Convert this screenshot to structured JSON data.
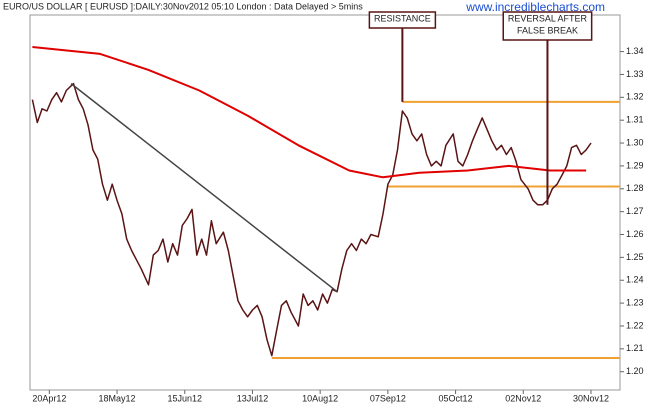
{
  "chart_data": {
    "type": "line",
    "title": "EURO/US DOLLAR [ EURUSD ]:DAILY:30Nov2012 05:10 London : Data Delayed > 5mins",
    "watermark": "www.incrediblecharts.com",
    "xlim": [
      -1,
      243
    ],
    "xticks": [
      {
        "value": 7,
        "label": "20Apr12"
      },
      {
        "value": 35,
        "label": "18May12"
      },
      {
        "value": 63,
        "label": "15Jun12"
      },
      {
        "value": 91,
        "label": "13Jul12"
      },
      {
        "value": 119,
        "label": "10Aug12"
      },
      {
        "value": 147,
        "label": "07Sep12"
      },
      {
        "value": 175,
        "label": "05Oct12"
      },
      {
        "value": 203,
        "label": "02Nov12"
      },
      {
        "value": 231,
        "label": "30Nov12"
      }
    ],
    "ylim": [
      1.192,
      1.356
    ],
    "yticks": [
      {
        "value": 1.2,
        "label": "1.20"
      },
      1.21,
      1.22,
      1.23,
      1.24,
      1.25,
      1.26,
      1.27,
      1.28,
      1.29,
      {
        "value": 1.3,
        "label": "1.30"
      },
      1.31,
      1.32,
      1.33,
      1.34
    ],
    "series": [
      {
        "color": "#5a1414",
        "x": [
          0,
          2,
          4,
          6,
          8,
          10,
          12,
          14,
          17,
          19,
          21,
          23,
          25,
          27,
          29,
          31,
          33,
          35,
          37,
          39,
          41,
          43,
          45,
          48,
          50,
          52,
          54,
          56,
          58,
          60,
          62,
          64,
          66,
          68,
          70,
          72,
          74,
          76,
          79,
          81,
          83,
          85,
          87,
          89,
          91,
          93,
          95,
          97,
          99,
          101,
          103,
          105,
          107,
          110,
          112,
          114,
          116,
          118,
          120,
          122,
          124,
          126,
          128,
          130,
          132,
          134,
          136,
          138,
          140,
          143,
          145,
          147,
          149,
          151,
          153,
          155,
          157,
          159,
          161,
          163,
          165,
          167,
          169,
          171,
          174,
          176,
          178,
          180,
          182,
          184,
          186,
          188,
          190,
          192,
          194,
          196,
          198,
          200,
          202,
          205,
          207,
          209,
          211,
          213,
          215,
          217,
          219,
          221,
          223,
          225,
          227,
          229,
          231
        ],
        "values": [
          1.319,
          1.309,
          1.315,
          1.314,
          1.319,
          1.322,
          1.318,
          1.323,
          1.326,
          1.319,
          1.315,
          1.308,
          1.297,
          1.293,
          1.282,
          1.275,
          1.282,
          1.275,
          1.269,
          1.258,
          1.253,
          1.249,
          1.245,
          1.238,
          1.251,
          1.253,
          1.258,
          1.248,
          1.256,
          1.251,
          1.264,
          1.267,
          1.271,
          1.251,
          1.258,
          1.251,
          1.266,
          1.256,
          1.261,
          1.253,
          1.242,
          1.231,
          1.227,
          1.224,
          1.227,
          1.229,
          1.224,
          1.214,
          1.207,
          1.218,
          1.229,
          1.231,
          1.226,
          1.22,
          1.234,
          1.229,
          1.231,
          1.227,
          1.234,
          1.23,
          1.236,
          1.235,
          1.245,
          1.253,
          1.256,
          1.253,
          1.258,
          1.256,
          1.26,
          1.259,
          1.269,
          1.282,
          1.286,
          1.297,
          1.314,
          1.311,
          1.304,
          1.301,
          1.304,
          1.295,
          1.29,
          1.292,
          1.29,
          1.299,
          1.304,
          1.292,
          1.29,
          1.295,
          1.301,
          1.306,
          1.311,
          1.306,
          1.301,
          1.297,
          1.299,
          1.295,
          1.298,
          1.292,
          1.284,
          1.28,
          1.275,
          1.273,
          1.273,
          1.275,
          1.28,
          1.282,
          1.286,
          1.29,
          1.298,
          1.299,
          1.295,
          1.297,
          1.3
        ]
      },
      {
        "color": "#e00000",
        "x": [
          0,
          28,
          48,
          69,
          89,
          110,
          131,
          145,
          160,
          180,
          197,
          214,
          229
        ],
        "values": [
          1.342,
          1.339,
          1.332,
          1.323,
          1.312,
          1.299,
          1.288,
          1.285,
          1.287,
          1.288,
          1.29,
          1.288,
          1.288
        ]
      },
      {
        "color": "#444444",
        "x": [
          16,
          126
        ],
        "values": [
          1.326,
          1.235
        ]
      }
    ],
    "hlines": [
      {
        "value": 1.318,
        "x_start": 153,
        "color": "#f0a030"
      },
      {
        "value": 1.281,
        "x_start": 147,
        "color": "#f0a030"
      },
      {
        "value": 1.206,
        "x_start": 99,
        "color": "#f0a030"
      }
    ],
    "annotations": [
      {
        "lines": [
          "RESISTANCE"
        ],
        "x": 153,
        "y": 1.318,
        "color": "#5a1414"
      },
      {
        "lines": [
          "REVERSAL AFTER",
          "FALSE BREAK"
        ],
        "x": 213,
        "y": 1.273,
        "color": "#5a1414"
      }
    ]
  }
}
